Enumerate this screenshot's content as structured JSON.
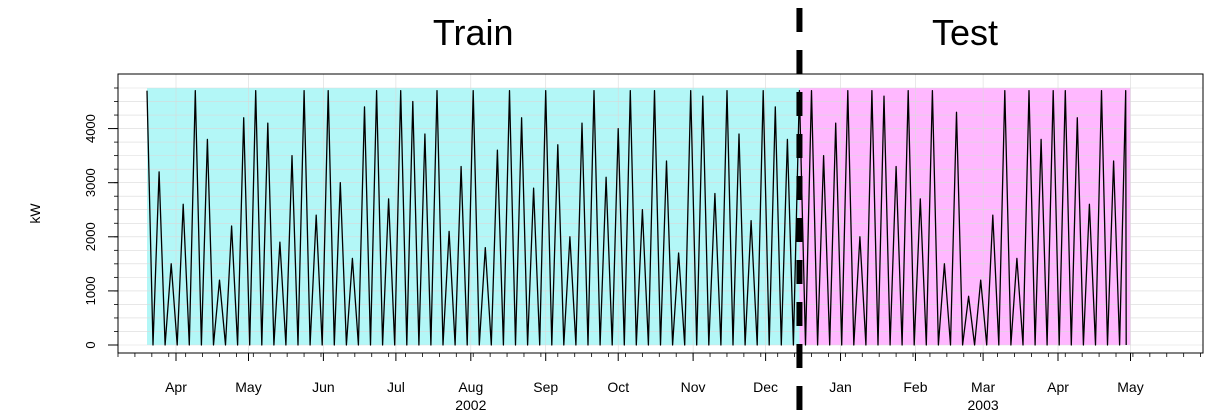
{
  "colors": {
    "train_background": "#b3f7f7",
    "test_background": "#ffb8ff",
    "series": "#000000",
    "split_line": "#000000",
    "grid": "#d9d9d9"
  },
  "chart_data": {
    "type": "line",
    "title": "",
    "ylabel": "kW",
    "xlabel": "",
    "ylim": [
      0,
      4750
    ],
    "yticks": [
      0,
      1000,
      2000,
      3000,
      4000
    ],
    "grid": true,
    "x_range": [
      "2002-03-08",
      "2003-05-31"
    ],
    "regions": [
      {
        "label": "Train",
        "start": "2002-03-20",
        "end": "2002-12-15",
        "color": "#b3f7f7"
      },
      {
        "label": "Test",
        "start": "2002-12-15",
        "end": "2003-05-01",
        "color": "#ffb8ff"
      }
    ],
    "split_date": "2002-12-15",
    "month_labels": [
      {
        "label": "Apr",
        "date": "2002-04-01"
      },
      {
        "label": "May",
        "date": "2002-05-01"
      },
      {
        "label": "Jun",
        "date": "2002-06-01"
      },
      {
        "label": "Jul",
        "date": "2002-07-01"
      },
      {
        "label": "Aug",
        "date": "2002-08-01"
      },
      {
        "label": "Sep",
        "date": "2002-09-01"
      },
      {
        "label": "Oct",
        "date": "2002-10-01"
      },
      {
        "label": "Nov",
        "date": "2002-11-01"
      },
      {
        "label": "Dec",
        "date": "2002-12-01"
      },
      {
        "label": "Jan",
        "date": "2003-01-01"
      },
      {
        "label": "Feb",
        "date": "2003-02-01"
      },
      {
        "label": "Mar",
        "date": "2003-03-01"
      },
      {
        "label": "Apr",
        "date": "2003-04-01"
      },
      {
        "label": "May",
        "date": "2003-05-01"
      }
    ],
    "year_labels": [
      {
        "label": "2002",
        "date": "2002-08-01"
      },
      {
        "label": "2003",
        "date": "2003-03-01"
      }
    ],
    "series": [
      {
        "sampling": "daily max",
        "x": [
          "2002-03-20",
          "2002-03-25",
          "2002-03-30",
          "2002-04-04",
          "2002-04-09",
          "2002-04-14",
          "2002-04-19",
          "2002-04-24",
          "2002-04-29",
          "2002-05-04",
          "2002-05-09",
          "2002-05-14",
          "2002-05-19",
          "2002-05-24",
          "2002-05-29",
          "2002-06-03",
          "2002-06-08",
          "2002-06-13",
          "2002-06-18",
          "2002-06-23",
          "2002-06-28",
          "2002-07-03",
          "2002-07-08",
          "2002-07-13",
          "2002-07-18",
          "2002-07-23",
          "2002-07-28",
          "2002-08-02",
          "2002-08-07",
          "2002-08-12",
          "2002-08-17",
          "2002-08-22",
          "2002-08-27",
          "2002-09-01",
          "2002-09-06",
          "2002-09-11",
          "2002-09-16",
          "2002-09-21",
          "2002-09-26",
          "2002-10-01",
          "2002-10-06",
          "2002-10-11",
          "2002-10-16",
          "2002-10-21",
          "2002-10-26",
          "2002-10-31",
          "2002-11-05",
          "2002-11-10",
          "2002-11-15",
          "2002-11-20",
          "2002-11-25",
          "2002-11-30",
          "2002-12-05",
          "2002-12-10",
          "2002-12-15",
          "2002-12-20",
          "2002-12-25",
          "2002-12-30",
          "2003-01-04",
          "2003-01-09",
          "2003-01-14",
          "2003-01-19",
          "2003-01-24",
          "2003-01-29",
          "2003-02-03",
          "2003-02-08",
          "2003-02-13",
          "2003-02-18",
          "2003-02-23",
          "2003-02-28",
          "2003-03-05",
          "2003-03-10",
          "2003-03-15",
          "2003-03-20",
          "2003-03-25",
          "2003-03-30",
          "2003-04-04",
          "2003-04-09",
          "2003-04-14",
          "2003-04-19",
          "2003-04-24",
          "2003-04-29"
        ],
        "y": [
          4700,
          3200,
          1500,
          2600,
          4700,
          3800,
          1200,
          2200,
          4200,
          4700,
          4100,
          1900,
          3500,
          4700,
          2400,
          4700,
          3000,
          1600,
          4400,
          4700,
          2700,
          4700,
          4500,
          3900,
          4700,
          2100,
          3300,
          4700,
          1800,
          3600,
          4700,
          4200,
          2900,
          4700,
          3700,
          2000,
          4100,
          4700,
          3100,
          4000,
          4700,
          2500,
          4700,
          3400,
          1700,
          4700,
          4600,
          2800,
          4700,
          3900,
          2300,
          4700,
          4400,
          3800,
          4700,
          4700,
          3500,
          4100,
          4700,
          2000,
          4700,
          4600,
          3300,
          4700,
          2700,
          4700,
          1500,
          4300,
          900,
          1200,
          2400,
          4700,
          1600,
          4700,
          3800,
          4700,
          4700,
          4200,
          2600,
          4700,
          3400,
          4700
        ]
      }
    ]
  }
}
